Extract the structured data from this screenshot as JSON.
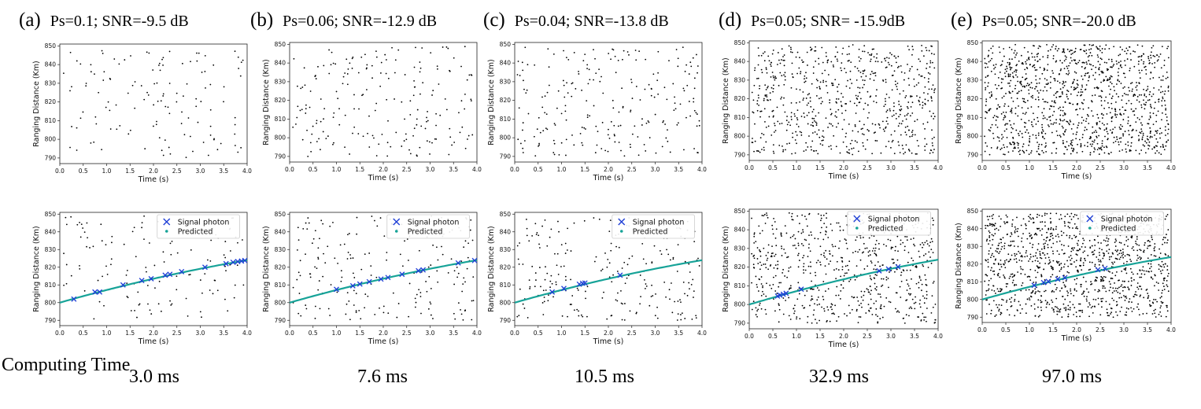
{
  "panels": [
    {
      "letter": "(a)",
      "condition": "Ps=0.1;  SNR=-9.5 dB",
      "computing_time": "3.0 ms"
    },
    {
      "letter": "(b)",
      "condition": "Ps=0.06; SNR=-12.9 dB",
      "computing_time": "7.6 ms"
    },
    {
      "letter": "(c)",
      "condition": "Ps=0.04; SNR=-13.8 dB",
      "computing_time": "10.5 ms"
    },
    {
      "letter": "(d)",
      "condition": "Ps=0.05; SNR= -15.9dB",
      "computing_time": "32.9 ms"
    },
    {
      "letter": "(e)",
      "condition": "Ps=0.05; SNR=-20.0 dB",
      "computing_time": "97.0 ms"
    }
  ],
  "computing_time_label": "Computing Time",
  "legend": {
    "signal": "Signal photon",
    "predicted": "Predicted"
  },
  "colors": {
    "signal_marker": "#1f3fd6",
    "predicted_line": "#17a398",
    "noise": "#000000"
  },
  "chart_data": [
    {
      "type": "scatter",
      "panel": "a",
      "row": "raw",
      "xlabel": "Time (s)",
      "ylabel": "Ranging Distance (Km)",
      "xlim": [
        0,
        4
      ],
      "ylim": [
        787,
        851
      ],
      "xticks": [
        0,
        0.5,
        1,
        1.5,
        2,
        2.5,
        3,
        3.5,
        4
      ],
      "yticks": [
        790,
        800,
        810,
        820,
        830,
        840,
        850
      ],
      "approx_points": 130
    },
    {
      "type": "scatter",
      "panel": "b",
      "row": "raw",
      "xlabel": "Time (s)",
      "ylabel": "Ranging Distance (Km)",
      "xlim": [
        0,
        4
      ],
      "ylim": [
        787,
        851
      ],
      "xticks": [
        0,
        0.5,
        1,
        1.5,
        2,
        2.5,
        3,
        3.5,
        4
      ],
      "yticks": [
        790,
        800,
        810,
        820,
        830,
        840,
        850
      ],
      "approx_points": 200
    },
    {
      "type": "scatter",
      "panel": "c",
      "row": "raw",
      "xlabel": "Time (s)",
      "ylabel": "Ranging Distance (Km)",
      "xlim": [
        0,
        4
      ],
      "ylim": [
        787,
        851
      ],
      "xticks": [
        0,
        0.5,
        1,
        1.5,
        2,
        2.5,
        3,
        3.5,
        4
      ],
      "yticks": [
        790,
        800,
        810,
        820,
        830,
        840,
        850
      ],
      "approx_points": 230
    },
    {
      "type": "scatter",
      "panel": "d",
      "row": "raw",
      "xlabel": "Time (s)",
      "ylabel": "Ranging Distance (Km)",
      "xlim": [
        0,
        4
      ],
      "ylim": [
        787,
        851
      ],
      "xticks": [
        0,
        0.5,
        1,
        1.5,
        2,
        2.5,
        3,
        3.5,
        4
      ],
      "yticks": [
        790,
        800,
        810,
        820,
        830,
        840,
        850
      ],
      "approx_points": 700
    },
    {
      "type": "scatter",
      "panel": "e",
      "row": "raw",
      "xlabel": "Time (s)",
      "ylabel": "Ranging Distance (Km)",
      "xlim": [
        0,
        4
      ],
      "ylim": [
        787,
        851
      ],
      "xticks": [
        0,
        0.5,
        1,
        1.5,
        2,
        2.5,
        3,
        3.5,
        4
      ],
      "yticks": [
        790,
        800,
        810,
        820,
        830,
        840,
        850
      ],
      "approx_points": 1200
    },
    {
      "type": "scatter",
      "panel": "a",
      "row": "result",
      "xlabel": "Time (s)",
      "ylabel": "Ranging Distance (Km)",
      "xlim": [
        0,
        4
      ],
      "ylim": [
        787,
        851
      ],
      "xticks": [
        0,
        0.5,
        1,
        1.5,
        2,
        2.5,
        3,
        3.5,
        4
      ],
      "yticks": [
        790,
        800,
        810,
        820,
        830,
        840,
        850
      ],
      "approx_points": 130,
      "predicted_curve": {
        "start": [
          0,
          800
        ],
        "end": [
          4,
          824
        ]
      },
      "signal_photons": [
        [
          0.3,
          802
        ],
        [
          0.75,
          806
        ],
        [
          0.85,
          806
        ],
        [
          1.35,
          810
        ],
        [
          1.75,
          812.5
        ],
        [
          1.95,
          813.5
        ],
        [
          2.25,
          815.5
        ],
        [
          2.35,
          816
        ],
        [
          2.6,
          817.5
        ],
        [
          3.1,
          820
        ],
        [
          3.55,
          822
        ],
        [
          3.7,
          822.8
        ],
        [
          3.8,
          823.2
        ],
        [
          3.88,
          823.5
        ],
        [
          3.95,
          823.8
        ]
      ]
    },
    {
      "type": "scatter",
      "panel": "b",
      "row": "result",
      "xlabel": "Time (s)",
      "ylabel": "Ranging Distance (Km)",
      "xlim": [
        0,
        4
      ],
      "ylim": [
        787,
        851
      ],
      "xticks": [
        0,
        0.5,
        1,
        1.5,
        2,
        2.5,
        3,
        3.5,
        4
      ],
      "yticks": [
        790,
        800,
        810,
        820,
        830,
        840,
        850
      ],
      "approx_points": 200,
      "predicted_curve": {
        "start": [
          0,
          800
        ],
        "end": [
          4,
          824
        ]
      },
      "signal_photons": [
        [
          1.0,
          807.5
        ],
        [
          1.35,
          809.5
        ],
        [
          1.5,
          810.5
        ],
        [
          1.7,
          811.8
        ],
        [
          1.95,
          813.3
        ],
        [
          2.1,
          814.2
        ],
        [
          2.4,
          816
        ],
        [
          2.75,
          818
        ],
        [
          2.85,
          818.5
        ],
        [
          3.6,
          822.4
        ],
        [
          3.95,
          823.8
        ]
      ]
    },
    {
      "type": "scatter",
      "panel": "c",
      "row": "result",
      "xlabel": "Time (s)",
      "ylabel": "Ranging Distance (Km)",
      "xlim": [
        0,
        4
      ],
      "ylim": [
        787,
        851
      ],
      "xticks": [
        0,
        0.5,
        1,
        1.5,
        2,
        2.5,
        3,
        3.5,
        4
      ],
      "yticks": [
        790,
        800,
        810,
        820,
        830,
        840,
        850
      ],
      "approx_points": 230,
      "predicted_curve": {
        "start": [
          0,
          800
        ],
        "end": [
          4,
          824
        ]
      },
      "signal_photons": [
        [
          0.8,
          806
        ],
        [
          1.05,
          808
        ],
        [
          1.38,
          810.4
        ],
        [
          1.45,
          810.9
        ],
        [
          1.5,
          811.1
        ],
        [
          2.25,
          815.5
        ]
      ]
    },
    {
      "type": "scatter",
      "panel": "d",
      "row": "result",
      "xlabel": "Time (s)",
      "ylabel": "Ranging Distance (Km)",
      "xlim": [
        0,
        4
      ],
      "ylim": [
        787,
        851
      ],
      "xticks": [
        0,
        0.5,
        1,
        1.5,
        2,
        2.5,
        3,
        3.5,
        4
      ],
      "yticks": [
        790,
        800,
        810,
        820,
        830,
        840,
        850
      ],
      "approx_points": 700,
      "predicted_curve": {
        "start": [
          0,
          800
        ],
        "end": [
          4,
          824
        ]
      },
      "signal_photons": [
        [
          0.6,
          804.5
        ],
        [
          0.65,
          805
        ],
        [
          0.72,
          805.5
        ],
        [
          0.78,
          806
        ],
        [
          1.1,
          808.2
        ],
        [
          2.75,
          818
        ],
        [
          2.95,
          819
        ],
        [
          3.15,
          820.2
        ]
      ]
    },
    {
      "type": "scatter",
      "panel": "e",
      "row": "result",
      "xlabel": "Time (s)",
      "ylabel": "Ranging Distance (Km)",
      "xlim": [
        0,
        4
      ],
      "ylim": [
        787,
        851
      ],
      "xticks": [
        0,
        0.5,
        1,
        1.5,
        2,
        2.5,
        3,
        3.5,
        4
      ],
      "yticks": [
        790,
        800,
        810,
        820,
        830,
        840,
        850
      ],
      "approx_points": 1200,
      "predicted_curve": {
        "start": [
          0,
          800
        ],
        "end": [
          4,
          824
        ]
      },
      "signal_photons": [
        [
          1.1,
          808
        ],
        [
          1.3,
          809.6
        ],
        [
          1.4,
          810.2
        ],
        [
          1.6,
          811.5
        ],
        [
          1.75,
          812.3
        ],
        [
          2.45,
          816.8
        ],
        [
          2.6,
          817.6
        ]
      ]
    }
  ]
}
